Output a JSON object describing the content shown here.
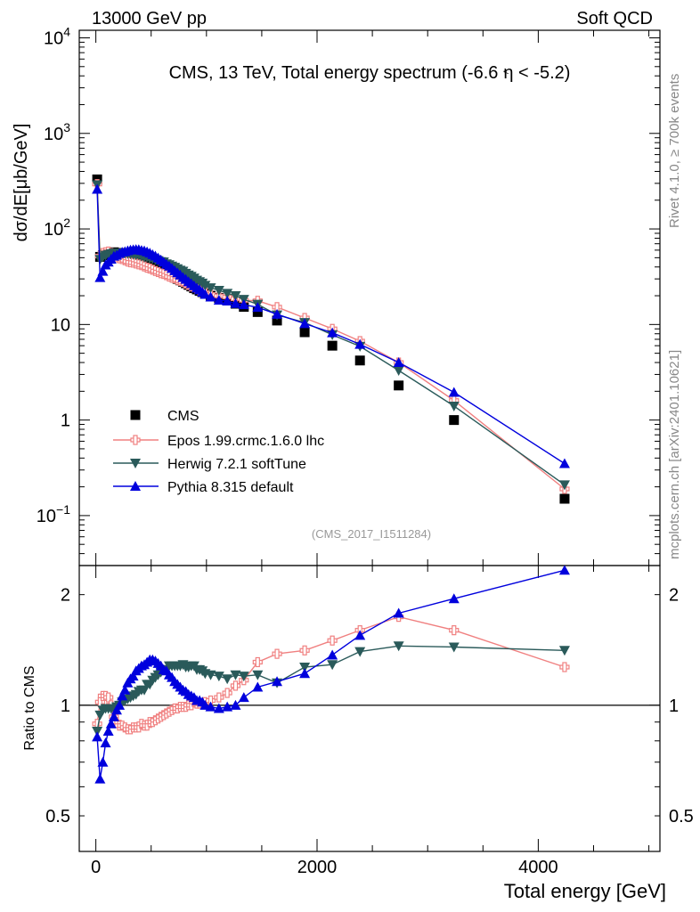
{
  "header": {
    "left": "13000 GeV pp",
    "right": "Soft QCD"
  },
  "side_labels": {
    "rivet": "Rivet 4.1.0, ≥ 700k events",
    "mcplots": "mcplots.cern.ch [arXiv:2401.10621]"
  },
  "colors": {
    "cms": "#000000",
    "epos": "#f08080",
    "herwig": "#2a5a5a",
    "pythia": "#0000dd"
  },
  "chart_data": [
    {
      "type": "scatter",
      "panel": "main",
      "title": "CMS, 13 TeV, Total energy spectrum (-6.6 < η < -5.2)",
      "title_parts": {
        "pre": "CMS, 13 TeV, Total energy spectrum (-6.6 ",
        "lt": "<",
        "post": "η < -5.2)"
      },
      "watermark": "(CMS_2017_I1511284)",
      "ylabel": "dσ/dE[μb/GeV]",
      "yscale": "log",
      "ylim": [
        0.03,
        12000
      ],
      "xlim": [
        -150,
        5100
      ],
      "y_tick_labels": [
        {
          "value": 10000,
          "base": "10",
          "exp": "4"
        },
        {
          "value": 1000,
          "base": "10",
          "exp": "3"
        },
        {
          "value": 100,
          "base": "10",
          "exp": "2"
        },
        {
          "value": 10,
          "base": "10",
          "exp": ""
        },
        {
          "value": 1,
          "base": "1",
          "exp": ""
        },
        {
          "value": 0.1,
          "base": "10",
          "exp": "−1"
        }
      ],
      "legend": [
        {
          "key": "cms",
          "label": "CMS"
        },
        {
          "key": "epos",
          "label": "Epos 1.99.crmc.1.6.0 lhc"
        },
        {
          "key": "herwig",
          "label": "Herwig 7.2.1 softTune"
        },
        {
          "key": "pythia",
          "label": "Pythia 8.315 default"
        }
      ],
      "legend_position": "lower-left",
      "x": [
        12,
        38,
        63,
        88,
        113,
        138,
        163,
        188,
        213,
        238,
        263,
        288,
        313,
        338,
        363,
        388,
        413,
        438,
        463,
        488,
        513,
        538,
        563,
        588,
        613,
        638,
        663,
        688,
        713,
        738,
        763,
        788,
        813,
        838,
        863,
        888,
        913,
        938,
        963,
        988,
        1038,
        1113,
        1188,
        1263,
        1338,
        1463,
        1638,
        1888,
        2138,
        2388,
        2738,
        3238,
        4238
      ],
      "series": [
        {
          "name": "CMS",
          "key": "cms",
          "values": [
            330,
            51,
            53,
            54,
            55,
            56,
            57,
            56,
            56,
            55,
            54,
            53,
            52,
            51,
            50,
            49,
            47,
            46,
            44.5,
            43,
            41.5,
            40,
            38.5,
            37,
            36,
            34.5,
            33,
            32,
            31,
            30,
            29,
            28,
            27,
            26,
            25,
            24,
            23.3,
            22.5,
            21.8,
            21,
            20,
            19,
            18,
            16.5,
            15.3,
            13.5,
            11,
            8.3,
            6,
            4.2,
            2.3,
            1.0,
            0.15
          ]
        },
        {
          "name": "Epos 1.99.crmc.1.6.0 lhc",
          "key": "epos",
          "values": [
            295,
            52,
            56,
            57,
            58,
            56,
            53,
            50.4,
            49.3,
            48.4,
            47,
            45.6,
            44.8,
            44.4,
            43.5,
            42.6,
            41.8,
            40.5,
            39.3,
            38.5,
            37.4,
            36.3,
            35.4,
            34.4,
            33.8,
            32.8,
            31.7,
            31,
            30.4,
            29.3,
            28.6,
            27.8,
            26.8,
            25.9,
            25,
            24.4,
            23.5,
            22.8,
            22.1,
            21.4,
            20.6,
            19.9,
            19.4,
            18.6,
            17.9,
            17.7,
            15.2,
            11.7,
            9.0,
            6.7,
            4.0,
            1.6,
            0.19
          ]
        },
        {
          "name": "Herwig 7.2.1 softTune",
          "key": "herwig",
          "values": [
            290,
            48,
            51,
            53,
            54,
            55,
            56,
            55.5,
            55.9,
            55.9,
            55.6,
            55.2,
            54.6,
            54.1,
            53.5,
            53.4,
            51.7,
            50.6,
            50.7,
            49.0,
            48.6,
            47.6,
            46.6,
            45.5,
            45.1,
            43.1,
            42.2,
            40.9,
            39.7,
            38.3,
            37.0,
            36.1,
            34.3,
            33.0,
            31.9,
            30.6,
            29.1,
            28.1,
            27.1,
            25.7,
            24.2,
            22.8,
            21.2,
            20.0,
            18.3,
            16.3,
            12.6,
            10.5,
            7.8,
            5.9,
            3.3,
            1.4,
            0.21
          ]
        },
        {
          "name": "Pythia 8.315 default",
          "key": "pythia",
          "values": [
            260,
            31,
            36,
            42,
            45,
            48.2,
            51.9,
            53.2,
            55.3,
            57.2,
            57.9,
            59.2,
            60.1,
            60.6,
            61.0,
            60.8,
            59.7,
            59.1,
            57.6,
            56.0,
            53.9,
            52.0,
            49.7,
            47.4,
            45.0,
            42.8,
            40.9,
            38.7,
            36.6,
            34.8,
            33.0,
            31.1,
            29.7,
            28.1,
            26.8,
            25.4,
            24.1,
            23.1,
            21.8,
            20.7,
            19.4,
            18.0,
            17.6,
            16.6,
            16.1,
            15.1,
            12.8,
            10.2,
            8.2,
            6.2,
            4.0,
            1.95,
            0.35
          ]
        }
      ]
    },
    {
      "type": "line",
      "panel": "ratio",
      "ylabel": "Ratio to CMS",
      "xlabel": "Total energy [GeV]",
      "yscale": "log",
      "ylim": [
        0.4,
        2.4
      ],
      "xlim": [
        -150,
        5100
      ],
      "x_tick_labels": [
        {
          "value": 0,
          "label": "0"
        },
        {
          "value": 2000,
          "label": "2000"
        },
        {
          "value": 4000,
          "label": "4000"
        }
      ],
      "y_tick_labels": [
        {
          "value": 2,
          "label": "2"
        },
        {
          "value": 1,
          "label": "1"
        },
        {
          "value": 0.5,
          "label": "0.5"
        }
      ],
      "reference_line": 1,
      "x": [
        12,
        38,
        63,
        88,
        113,
        138,
        163,
        188,
        213,
        238,
        263,
        288,
        313,
        338,
        363,
        388,
        413,
        438,
        463,
        488,
        513,
        538,
        563,
        588,
        613,
        638,
        663,
        688,
        713,
        738,
        763,
        788,
        813,
        838,
        863,
        888,
        913,
        938,
        963,
        988,
        1038,
        1113,
        1188,
        1263,
        1338,
        1463,
        1638,
        1888,
        2138,
        2388,
        2738,
        3238,
        4238
      ],
      "series": [
        {
          "name": "Epos 1.99.crmc.1.6.0 lhc",
          "key": "epos",
          "values": [
            0.89,
            1.02,
            1.06,
            1.06,
            1.05,
            1.0,
            0.93,
            0.9,
            0.88,
            0.88,
            0.87,
            0.86,
            0.86,
            0.87,
            0.87,
            0.87,
            0.89,
            0.88,
            0.88,
            0.9,
            0.9,
            0.91,
            0.92,
            0.93,
            0.94,
            0.95,
            0.96,
            0.97,
            0.98,
            0.98,
            0.99,
            0.99,
            0.99,
            1.0,
            1.0,
            1.02,
            1.01,
            1.01,
            1.01,
            1.02,
            1.03,
            1.05,
            1.08,
            1.13,
            1.17,
            1.31,
            1.38,
            1.41,
            1.5,
            1.6,
            1.74,
            1.6,
            1.27
          ]
        },
        {
          "name": "Herwig 7.2.1 softTune",
          "key": "herwig",
          "values": [
            0.85,
            0.94,
            0.97,
            0.98,
            0.98,
            0.98,
            0.98,
            0.99,
            1.0,
            1.02,
            1.03,
            1.04,
            1.05,
            1.06,
            1.07,
            1.09,
            1.1,
            1.1,
            1.14,
            1.14,
            1.17,
            1.19,
            1.21,
            1.23,
            1.25,
            1.25,
            1.28,
            1.28,
            1.28,
            1.28,
            1.28,
            1.29,
            1.27,
            1.27,
            1.28,
            1.28,
            1.25,
            1.25,
            1.24,
            1.22,
            1.21,
            1.2,
            1.18,
            1.21,
            1.2,
            1.21,
            1.15,
            1.27,
            1.29,
            1.4,
            1.45,
            1.44,
            1.41
          ]
        },
        {
          "name": "Pythia 8.315 default",
          "key": "pythia",
          "values": [
            0.82,
            0.63,
            0.7,
            0.79,
            0.85,
            0.89,
            0.93,
            0.97,
            1.0,
            1.06,
            1.1,
            1.15,
            1.18,
            1.2,
            1.24,
            1.26,
            1.28,
            1.29,
            1.31,
            1.33,
            1.33,
            1.32,
            1.3,
            1.28,
            1.25,
            1.24,
            1.21,
            1.19,
            1.16,
            1.14,
            1.12,
            1.1,
            1.09,
            1.07,
            1.06,
            1.05,
            1.03,
            1.03,
            1.02,
            1.0,
            0.99,
            0.98,
            0.99,
            1.0,
            1.05,
            1.12,
            1.16,
            1.22,
            1.37,
            1.55,
            1.78,
            1.95,
            2.33
          ]
        }
      ]
    }
  ]
}
